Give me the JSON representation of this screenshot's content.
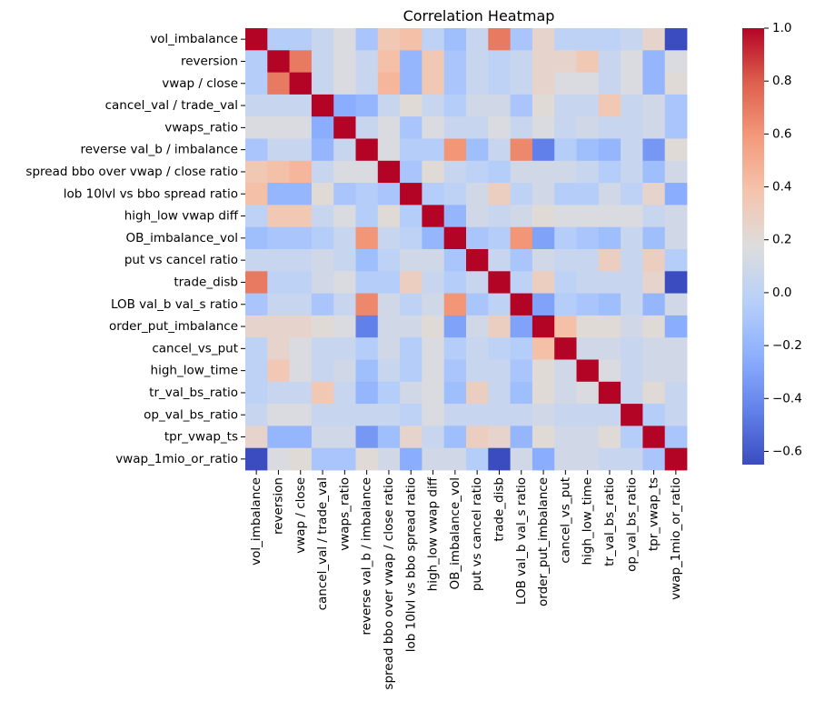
{
  "chart_data": {
    "type": "heatmap",
    "title": "Correlation Heatmap",
    "colormap": "coolwarm",
    "variables": [
      "vol_imbalance",
      "reversion",
      "vwap / close",
      "cancel_val / trade_val",
      "vwaps_ratio",
      "reverse val_b / imbalance",
      "spread bbo over vwap / close ratio",
      "lob 10lvl vs bbo spread ratio",
      "high_low vwap diff",
      "OB_imbalance_vol",
      "put vs cancel ratio",
      "trade_disb",
      "LOB val_b val_s ratio",
      "order_put_imbalance",
      "cancel_vs_put",
      "high_low_time",
      "tr_val_bs_ratio",
      "op_val_bs_ratio",
      "tpr_vwap_ts",
      "vwap_1mio_or_ratio"
    ],
    "colorbar": {
      "min": -0.65,
      "max": 1.0,
      "ticks": [
        1.0,
        0.8,
        0.6,
        0.4,
        0.2,
        0.0,
        -0.2,
        -0.4,
        -0.6
      ],
      "tick_labels": [
        "1.0",
        "0.8",
        "0.6",
        "0.4",
        "0.2",
        "0.0",
        "−0.2",
        "−0.4",
        "−0.6"
      ]
    },
    "matrix": [
      [
        1.0,
        -0.05,
        -0.05,
        0.05,
        0.15,
        -0.1,
        0.35,
        0.4,
        0.0,
        -0.15,
        0.05,
        0.7,
        -0.1,
        0.25,
        0.0,
        0.0,
        0.0,
        0.05,
        0.25,
        -0.65
      ],
      [
        -0.05,
        1.0,
        0.7,
        0.05,
        0.15,
        0.05,
        0.4,
        -0.2,
        0.35,
        -0.1,
        0.05,
        0.0,
        0.05,
        0.25,
        0.25,
        0.35,
        0.05,
        0.15,
        -0.2,
        0.15
      ],
      [
        -0.05,
        0.7,
        1.0,
        0.05,
        0.15,
        0.05,
        0.45,
        -0.2,
        0.35,
        -0.1,
        0.05,
        0.0,
        0.05,
        0.25,
        0.15,
        0.15,
        0.05,
        0.15,
        -0.2,
        0.2
      ],
      [
        0.05,
        0.05,
        0.05,
        1.0,
        -0.25,
        -0.2,
        0.05,
        0.2,
        0.05,
        -0.05,
        0.1,
        0.1,
        -0.1,
        0.2,
        0.05,
        0.05,
        0.35,
        0.05,
        0.1,
        -0.1
      ],
      [
        0.15,
        0.15,
        0.15,
        -0.25,
        1.0,
        0.05,
        0.15,
        -0.1,
        0.15,
        0.05,
        0.05,
        0.15,
        0.05,
        0.15,
        0.05,
        0.1,
        0.05,
        0.05,
        0.1,
        -0.1
      ],
      [
        -0.1,
        0.05,
        0.05,
        -0.2,
        0.05,
        1.0,
        0.15,
        -0.05,
        -0.05,
        0.6,
        -0.15,
        0.05,
        0.65,
        -0.45,
        -0.05,
        -0.15,
        -0.2,
        0.05,
        -0.35,
        0.2
      ],
      [
        0.35,
        0.4,
        0.45,
        0.05,
        0.15,
        0.15,
        1.0,
        -0.1,
        0.2,
        0.05,
        0.0,
        -0.05,
        0.1,
        0.1,
        0.1,
        0.05,
        -0.05,
        0.05,
        -0.15,
        0.1
      ],
      [
        0.4,
        -0.2,
        -0.2,
        0.2,
        -0.1,
        -0.05,
        -0.1,
        1.0,
        -0.05,
        0.0,
        0.1,
        0.3,
        0.0,
        0.1,
        -0.05,
        -0.05,
        0.1,
        0.0,
        0.25,
        -0.25
      ],
      [
        0.0,
        0.35,
        0.35,
        0.05,
        0.15,
        -0.05,
        0.2,
        -0.05,
        1.0,
        -0.2,
        0.1,
        0.05,
        0.1,
        0.2,
        0.15,
        0.15,
        0.15,
        0.15,
        0.05,
        0.1
      ],
      [
        -0.15,
        -0.1,
        -0.1,
        -0.05,
        0.05,
        0.6,
        0.05,
        0.0,
        -0.2,
        1.0,
        -0.1,
        -0.05,
        0.6,
        -0.3,
        -0.05,
        -0.1,
        -0.15,
        0.05,
        -0.15,
        0.1
      ],
      [
        0.05,
        0.05,
        0.05,
        0.1,
        0.05,
        -0.15,
        0.0,
        0.1,
        0.1,
        -0.1,
        1.0,
        0.05,
        -0.1,
        0.1,
        0.05,
        0.05,
        0.3,
        0.05,
        0.3,
        -0.05
      ],
      [
        0.7,
        0.0,
        0.0,
        0.1,
        0.15,
        -0.05,
        -0.05,
        0.3,
        0.05,
        -0.05,
        0.05,
        1.0,
        0.0,
        0.3,
        0.0,
        0.05,
        0.05,
        0.05,
        0.25,
        -0.65
      ],
      [
        -0.1,
        0.05,
        0.05,
        -0.1,
        0.05,
        0.65,
        0.1,
        0.0,
        0.1,
        0.6,
        -0.1,
        0.0,
        1.0,
        -0.3,
        -0.05,
        -0.1,
        -0.15,
        0.05,
        -0.2,
        0.1
      ],
      [
        0.25,
        0.25,
        0.25,
        0.2,
        0.15,
        -0.45,
        0.1,
        0.1,
        0.2,
        -0.3,
        0.1,
        0.3,
        -0.3,
        1.0,
        0.4,
        0.2,
        0.2,
        0.1,
        0.2,
        -0.25
      ],
      [
        0.0,
        0.25,
        0.15,
        0.05,
        0.05,
        -0.05,
        0.1,
        -0.05,
        0.15,
        -0.05,
        0.05,
        0.0,
        -0.05,
        0.4,
        1.0,
        0.1,
        0.1,
        0.05,
        0.1,
        0.1
      ],
      [
        0.0,
        0.35,
        0.15,
        0.05,
        0.1,
        -0.15,
        0.05,
        -0.05,
        0.15,
        -0.1,
        0.05,
        0.05,
        -0.1,
        0.2,
        0.1,
        1.0,
        0.15,
        0.05,
        0.1,
        0.1
      ],
      [
        0.0,
        0.05,
        0.05,
        0.35,
        0.05,
        -0.2,
        -0.05,
        0.1,
        0.15,
        -0.15,
        0.3,
        0.05,
        -0.15,
        0.2,
        0.1,
        0.15,
        1.0,
        0.05,
        0.2,
        0.05
      ],
      [
        0.05,
        0.15,
        0.15,
        0.05,
        0.05,
        0.05,
        0.05,
        0.0,
        0.15,
        0.05,
        0.05,
        0.05,
        0.05,
        0.1,
        0.05,
        0.05,
        0.05,
        1.0,
        -0.05,
        0.05
      ],
      [
        0.25,
        -0.2,
        -0.2,
        0.1,
        0.1,
        -0.35,
        -0.15,
        0.25,
        0.05,
        -0.15,
        0.3,
        0.25,
        -0.2,
        0.2,
        0.1,
        0.1,
        0.2,
        -0.05,
        1.0,
        -0.1
      ],
      [
        -0.65,
        0.15,
        0.2,
        -0.1,
        -0.1,
        0.2,
        0.1,
        -0.25,
        0.1,
        0.1,
        -0.05,
        -0.65,
        0.1,
        -0.25,
        0.1,
        0.1,
        0.05,
        0.05,
        -0.1,
        1.0
      ]
    ]
  }
}
